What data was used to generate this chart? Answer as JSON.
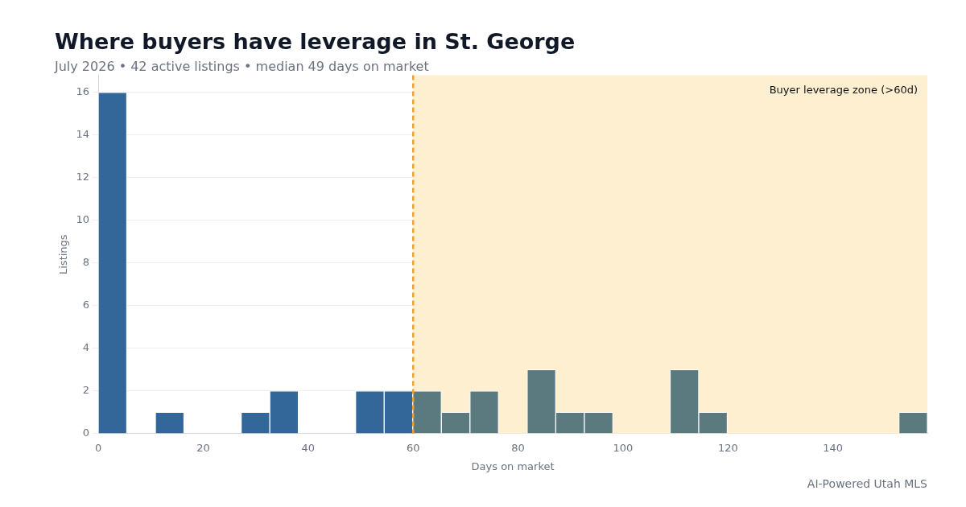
{
  "chart_data": {
    "type": "histogram",
    "title": "Where buyers have leverage in St. George",
    "subtitle": "July 2026 • 42 active listings • median 49 days on market",
    "xlabel": "Days on market",
    "ylabel": "Listings",
    "bins": [
      0,
      5.4,
      10.9,
      16.3,
      21.8,
      27.2,
      32.7,
      38.1,
      43.6,
      49.0,
      54.5,
      59.9,
      65.4,
      70.8,
      76.3,
      81.7,
      87.2,
      92.6,
      98.1,
      103.5,
      109.0,
      114.4,
      119.9,
      125.3,
      130.8,
      136.2,
      141.7,
      147.1,
      152.6,
      158.0
    ],
    "values": [
      16,
      0,
      1,
      0,
      0,
      1,
      2,
      0,
      0,
      2,
      2,
      2,
      1,
      2,
      0,
      3,
      1,
      1,
      0,
      0,
      3,
      1,
      0,
      0,
      0,
      0,
      0,
      0,
      1
    ],
    "colors": [
      "#336699",
      "#336699",
      "#336699",
      "#336699",
      "#336699",
      "#336699",
      "#336699",
      "#336699",
      "#336699",
      "#336699",
      "#336699",
      "#5b7a80",
      "#5b7a80",
      "#5b7a80",
      "#5b7a80",
      "#5b7a80",
      "#5b7a80",
      "#5b7a80",
      "#5b7a80",
      "#5b7a80",
      "#5b7a80",
      "#5b7a80",
      "#5b7a80",
      "#5b7a80",
      "#5b7a80",
      "#5b7a80",
      "#5b7a80",
      "#5b7a80",
      "#5b7a80"
    ],
    "xlim": [
      0,
      158
    ],
    "xticks": [
      0,
      20,
      40,
      60,
      80,
      100,
      120,
      140
    ],
    "ylim": [
      0,
      16.8
    ],
    "yticks": [
      0,
      2,
      4,
      6,
      8,
      10,
      12,
      14,
      16
    ],
    "ref_lines": [
      {
        "axis": "x",
        "value": 60,
        "color": "#f0a030",
        "line_style": "dashed"
      }
    ],
    "bands": [
      {
        "axis": "x",
        "from": 60,
        "to": 158,
        "label": "Buyer leverage zone (>60d)",
        "color": "#fdefd0"
      }
    ],
    "annotations": [
      "AI-Powered Utah MLS"
    ],
    "grid": "y",
    "legend": "top right"
  }
}
